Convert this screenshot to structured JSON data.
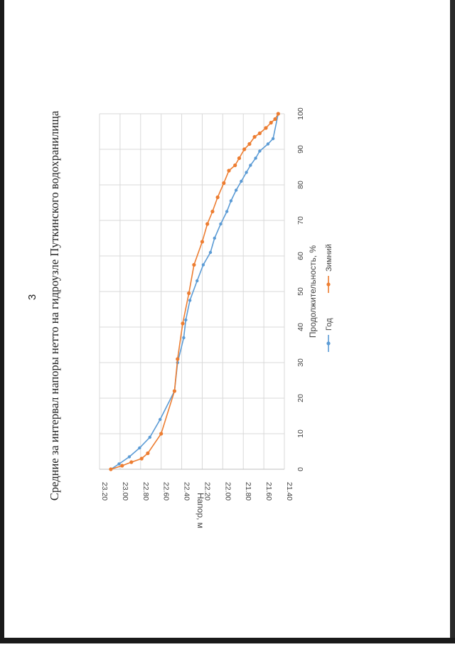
{
  "page_number": "3",
  "chart_data": {
    "type": "line",
    "title": "Средние за интервал напоры нетто на гидроузле Путкинского водохранилища",
    "xlabel": "Продолжительность, %",
    "ylabel": "Напор, м",
    "xlim": [
      0,
      100
    ],
    "ylim": [
      21.4,
      23.2
    ],
    "x_ticks": [
      "0",
      "10",
      "20",
      "30",
      "40",
      "50",
      "60",
      "70",
      "80",
      "90",
      "100"
    ],
    "y_ticks": [
      "21.40",
      "21.60",
      "21.80",
      "22.00",
      "22.20",
      "22.40",
      "22.60",
      "22.80",
      "23.00",
      "23.20"
    ],
    "grid": true,
    "legend_position": "bottom",
    "series": [
      {
        "name": "Год",
        "color": "#5b9bd5",
        "x": [
          0,
          1.5,
          3.5,
          6,
          9,
          14,
          22,
          30,
          37,
          42,
          47.5,
          53,
          57.5,
          61,
          65,
          69,
          72.5,
          75.5,
          78.5,
          81,
          83.5,
          85.5,
          87.5,
          89.5,
          91.5,
          93,
          100
        ],
        "y": [
          23.09,
          23.01,
          22.91,
          22.81,
          22.71,
          22.61,
          22.47,
          22.44,
          22.38,
          22.36,
          22.32,
          22.25,
          22.19,
          22.12,
          22.08,
          22.02,
          21.96,
          21.92,
          21.87,
          21.82,
          21.77,
          21.73,
          21.68,
          21.64,
          21.56,
          21.51,
          21.46
        ]
      },
      {
        "name": "Зимний",
        "color": "#ed7d31",
        "x": [
          0,
          1,
          2,
          3,
          4.5,
          10,
          22,
          31,
          41,
          49.5,
          57.5,
          64,
          69,
          72.5,
          76.5,
          80.5,
          84,
          85.5,
          87.5,
          90,
          91.5,
          93.5,
          94.5,
          96,
          97.5,
          98.5,
          100
        ],
        "y": [
          23.09,
          22.98,
          22.89,
          22.79,
          22.73,
          22.6,
          22.47,
          22.44,
          22.39,
          22.33,
          22.28,
          22.2,
          22.15,
          22.1,
          22.05,
          21.99,
          21.94,
          21.88,
          21.84,
          21.79,
          21.74,
          21.69,
          21.64,
          21.58,
          21.53,
          21.49,
          21.46
        ]
      }
    ]
  }
}
